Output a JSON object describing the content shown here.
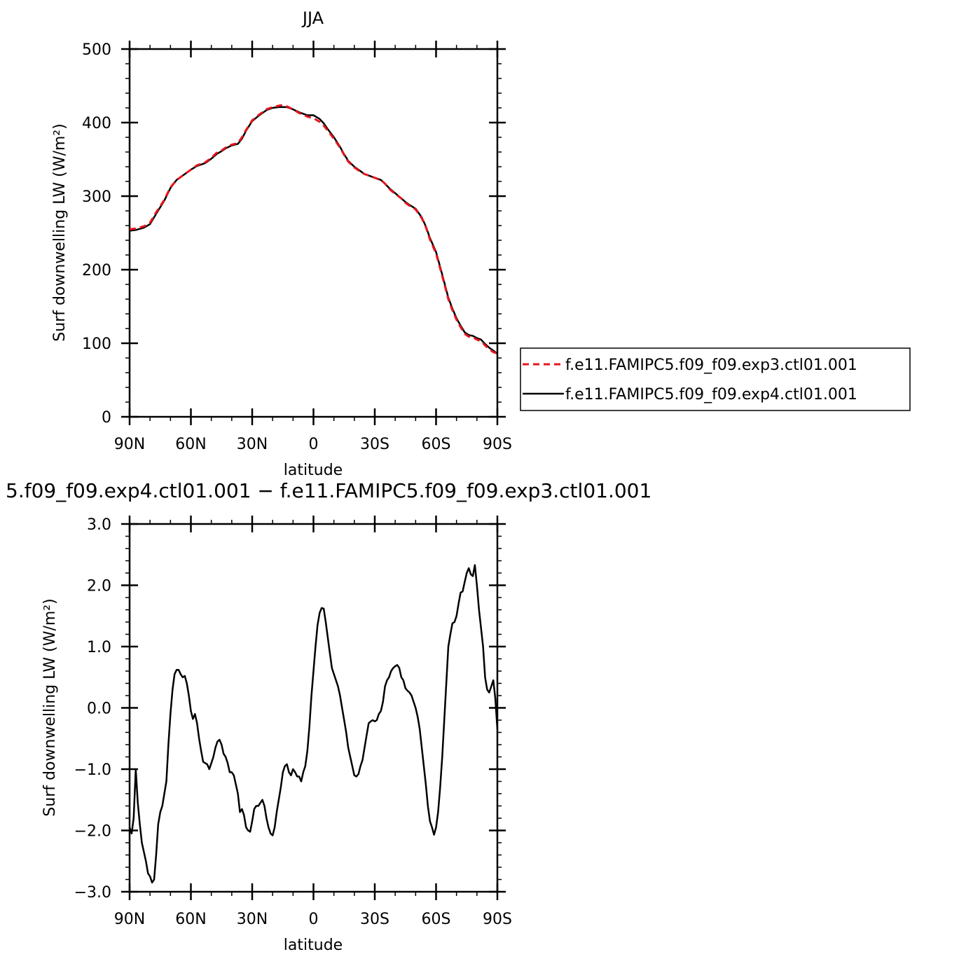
{
  "chart_data": [
    {
      "type": "line",
      "title": "JJA",
      "xlabel": "latitude",
      "ylabel": "Surf downwelling LW (W/m²)",
      "xlim": [
        90,
        -90
      ],
      "ylim": [
        0,
        500
      ],
      "x_ticks": [
        90,
        60,
        30,
        0,
        -30,
        -60,
        -90
      ],
      "x_tick_labels": [
        "90N",
        "60N",
        "30N",
        "0",
        "30S",
        "60S",
        "90S"
      ],
      "y_ticks": [
        0,
        100,
        200,
        300,
        400,
        500
      ],
      "y_tick_labels": [
        "0",
        "100",
        "200",
        "300",
        "400",
        "500"
      ],
      "grid": false,
      "legend_position": "right",
      "series": [
        {
          "name": "f.e11.FAMIPC5.f09_f09.exp3.ctl01.001",
          "color": "#e8141c",
          "dash": "dashed",
          "x": [
            90,
            87,
            83,
            80,
            77,
            73,
            70,
            67,
            63,
            60,
            57,
            53,
            50,
            47,
            45,
            43,
            40,
            37,
            35,
            33,
            30,
            27,
            25,
            23,
            20,
            17,
            15,
            13,
            10,
            7,
            5,
            3,
            0,
            -3,
            -5,
            -7,
            -10,
            -13,
            -15,
            -17,
            -20,
            -23,
            -25,
            -27,
            -30,
            -33,
            -35,
            -37,
            -40,
            -43,
            -45,
            -47,
            -50,
            -53,
            -55,
            -57,
            -60,
            -62,
            -64,
            -66,
            -68,
            -70,
            -72,
            -74,
            -76,
            -78,
            -80,
            -82,
            -84,
            -86,
            -88,
            -90
          ],
          "y": [
            255,
            256,
            259,
            264,
            278,
            295,
            312,
            322,
            330,
            336,
            342,
            346,
            352,
            360,
            362,
            366,
            370,
            372,
            380,
            390,
            403,
            410,
            414,
            418,
            421,
            423,
            424,
            422,
            418,
            413,
            411,
            408,
            406,
            401,
            396,
            389,
            378,
            366,
            356,
            347,
            339,
            333,
            330,
            328,
            325,
            322,
            317,
            310,
            303,
            297,
            291,
            287,
            282,
            270,
            258,
            241,
            222,
            202,
            181,
            160,
            145,
            132,
            122,
            113,
            109,
            108,
            105,
            103,
            97,
            92,
            88,
            86
          ]
        },
        {
          "name": "f.e11.FAMIPC5.f09_f09.exp4.ctl01.001",
          "color": "#000000",
          "dash": "solid",
          "x": [
            90,
            87,
            83,
            80,
            77,
            73,
            70,
            67,
            63,
            60,
            57,
            53,
            50,
            47,
            45,
            43,
            40,
            37,
            35,
            33,
            30,
            27,
            25,
            23,
            20,
            17,
            15,
            13,
            10,
            7,
            5,
            3,
            0,
            -3,
            -5,
            -7,
            -10,
            -13,
            -15,
            -17,
            -20,
            -23,
            -25,
            -27,
            -30,
            -33,
            -35,
            -37,
            -40,
            -43,
            -45,
            -47,
            -50,
            -53,
            -55,
            -57,
            -60,
            -62,
            -64,
            -66,
            -68,
            -70,
            -72,
            -74,
            -76,
            -78,
            -80,
            -82,
            -84,
            -86,
            -88,
            -90
          ],
          "y": [
            253,
            254,
            257,
            262,
            276,
            294,
            311,
            322,
            330,
            336,
            341,
            345,
            351,
            358,
            361,
            365,
            369,
            371,
            378,
            389,
            402,
            409,
            413,
            417,
            420,
            421,
            421,
            421,
            418,
            414,
            412,
            410,
            410,
            405,
            399,
            391,
            380,
            367,
            357,
            348,
            340,
            334,
            330,
            328,
            325,
            322,
            317,
            311,
            304,
            297,
            292,
            288,
            283,
            271,
            259,
            243,
            224,
            204,
            183,
            162,
            147,
            134,
            124,
            115,
            111,
            110,
            107,
            105,
            99,
            94,
            90,
            86
          ]
        }
      ]
    },
    {
      "type": "line",
      "title": "5.f09_f09.exp4.ctl01.001 − f.e11.FAMIPC5.f09_f09.exp3.ctl01.001",
      "xlabel": "latitude",
      "ylabel": "Surf downwelling LW (W/m²)",
      "xlim": [
        90,
        -90
      ],
      "ylim": [
        -3.0,
        3.0
      ],
      "x_ticks": [
        90,
        60,
        30,
        0,
        -30,
        -60,
        -90
      ],
      "x_tick_labels": [
        "90N",
        "60N",
        "30N",
        "0",
        "30S",
        "60S",
        "90S"
      ],
      "y_ticks": [
        -3.0,
        -2.0,
        -1.0,
        0.0,
        1.0,
        2.0,
        3.0
      ],
      "y_tick_labels": [
        "−3.0",
        "−2.0",
        "−1.0",
        "0.0",
        "1.0",
        "2.0",
        "3.0"
      ],
      "grid": false,
      "series": [
        {
          "color": "#000000",
          "dash": "solid",
          "x": [
            90,
            89,
            88,
            87,
            86,
            85,
            84,
            83,
            82,
            81,
            80,
            79,
            78,
            77,
            76,
            75,
            74,
            73,
            72,
            71,
            70,
            69,
            68,
            67,
            66,
            65,
            64,
            63,
            62,
            61,
            60,
            59,
            58,
            57,
            56,
            55,
            54,
            53,
            52,
            51,
            50,
            49,
            48,
            47,
            46,
            45,
            44,
            43,
            42,
            41,
            40,
            39,
            38,
            37,
            36,
            35,
            34,
            33,
            32,
            31,
            30,
            29,
            28,
            27,
            26,
            25,
            24,
            23,
            22,
            21,
            20,
            19,
            18,
            17,
            16,
            15,
            14,
            13,
            12,
            11,
            10,
            9,
            8,
            7,
            6,
            5,
            4,
            3,
            2,
            1,
            0,
            -1,
            -2,
            -3,
            -4,
            -5,
            -6,
            -7,
            -8,
            -9,
            -10,
            -11,
            -12,
            -13,
            -14,
            -15,
            -16,
            -17,
            -18,
            -19,
            -20,
            -21,
            -22,
            -23,
            -24,
            -25,
            -26,
            -27,
            -28,
            -29,
            -30,
            -31,
            -32,
            -33,
            -34,
            -35,
            -36,
            -37,
            -38,
            -39,
            -40,
            -41,
            -42,
            -43,
            -44,
            -45,
            -46,
            -47,
            -48,
            -49,
            -50,
            -51,
            -52,
            -53,
            -54,
            -55,
            -56,
            -57,
            -58,
            -59,
            -60,
            -61,
            -62,
            -63,
            -64,
            -65,
            -66,
            -67,
            -68,
            -69,
            -70,
            -71,
            -72,
            -73,
            -74,
            -75,
            -76,
            -77,
            -78,
            -79,
            -80,
            -81,
            -82,
            -83,
            -84,
            -85,
            -86,
            -87,
            -88,
            -89,
            -90
          ],
          "y": [
            -1.95,
            -2.05,
            -1.8,
            -1.0,
            -1.55,
            -1.9,
            -2.2,
            -2.35,
            -2.5,
            -2.7,
            -2.75,
            -2.85,
            -2.8,
            -2.4,
            -1.9,
            -1.7,
            -1.6,
            -1.4,
            -1.2,
            -0.6,
            -0.1,
            0.3,
            0.55,
            0.62,
            0.62,
            0.55,
            0.5,
            0.52,
            0.4,
            0.2,
            -0.05,
            -0.18,
            -0.1,
            -0.25,
            -0.5,
            -0.7,
            -0.88,
            -0.9,
            -0.92,
            -1.0,
            -0.9,
            -0.8,
            -0.65,
            -0.55,
            -0.52,
            -0.6,
            -0.75,
            -0.8,
            -0.9,
            -1.05,
            -1.05,
            -1.1,
            -1.25,
            -1.4,
            -1.7,
            -1.65,
            -1.75,
            -1.95,
            -2.0,
            -2.02,
            -1.85,
            -1.65,
            -1.6,
            -1.6,
            -1.55,
            -1.5,
            -1.6,
            -1.8,
            -1.95,
            -2.05,
            -2.08,
            -1.95,
            -1.7,
            -1.5,
            -1.3,
            -1.05,
            -0.95,
            -0.92,
            -1.05,
            -1.1,
            -1.0,
            -1.05,
            -1.12,
            -1.12,
            -1.2,
            -1.05,
            -0.95,
            -0.7,
            -0.3,
            0.2,
            0.6,
            1.0,
            1.35,
            1.55,
            1.63,
            1.62,
            1.4,
            1.15,
            0.9,
            0.65,
            0.55,
            0.45,
            0.35,
            0.2,
            0.0,
            -0.2,
            -0.4,
            -0.65,
            -0.8,
            -0.95,
            -1.1,
            -1.12,
            -1.08,
            -0.95,
            -0.85,
            -0.65,
            -0.45,
            -0.25,
            -0.22,
            -0.2,
            -0.22,
            -0.2,
            -0.1,
            -0.05,
            0.1,
            0.35,
            0.45,
            0.5,
            0.6,
            0.65,
            0.68,
            0.7,
            0.65,
            0.5,
            0.45,
            0.32,
            0.28,
            0.25,
            0.2,
            0.1,
            0.0,
            -0.15,
            -0.35,
            -0.65,
            -0.95,
            -1.25,
            -1.6,
            -1.85,
            -1.95,
            -2.07,
            -1.95,
            -1.7,
            -1.3,
            -0.8,
            -0.2,
            0.4,
            1.0,
            1.2,
            1.38,
            1.4,
            1.5,
            1.7,
            1.88,
            1.9,
            2.05,
            2.2,
            2.28,
            2.18,
            2.15,
            2.33,
            2.0,
            1.6,
            1.3,
            1.0,
            0.5,
            0.3,
            0.25,
            0.35,
            0.45,
            0.15,
            -0.35
          ]
        }
      ]
    }
  ]
}
